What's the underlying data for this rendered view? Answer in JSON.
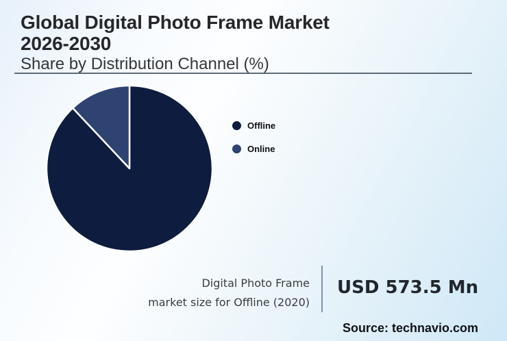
{
  "header": {
    "title_line1": "Global Digital Photo Frame Market",
    "title_line2": "2026-2030",
    "subtitle": "Share by Distribution Channel (%)"
  },
  "chart_data": {
    "type": "pie",
    "title": "Global Digital Photo Frame Market 2026-2030 - Share by Distribution Channel (%)",
    "categories": [
      "Offline",
      "Online"
    ],
    "values": [
      88,
      12
    ],
    "unit": "%",
    "colors": [
      "#0d1c3f",
      "#2e4372"
    ],
    "slice_separator_color": "#ffffff",
    "start_angle": "12 o'clock",
    "direction": "clockwise",
    "legend_position": "right",
    "data_labels": "none"
  },
  "legend": {
    "items": [
      {
        "label": "Offline",
        "color": "#0d1c3f"
      },
      {
        "label": "Online",
        "color": "#2e4372"
      }
    ]
  },
  "stat": {
    "label_line1": "Digital Photo Frame",
    "label_line2": "market size for Offline (2020)",
    "value": "USD 573.5 Mn"
  },
  "footer": {
    "source": "Source: technavio.com"
  }
}
